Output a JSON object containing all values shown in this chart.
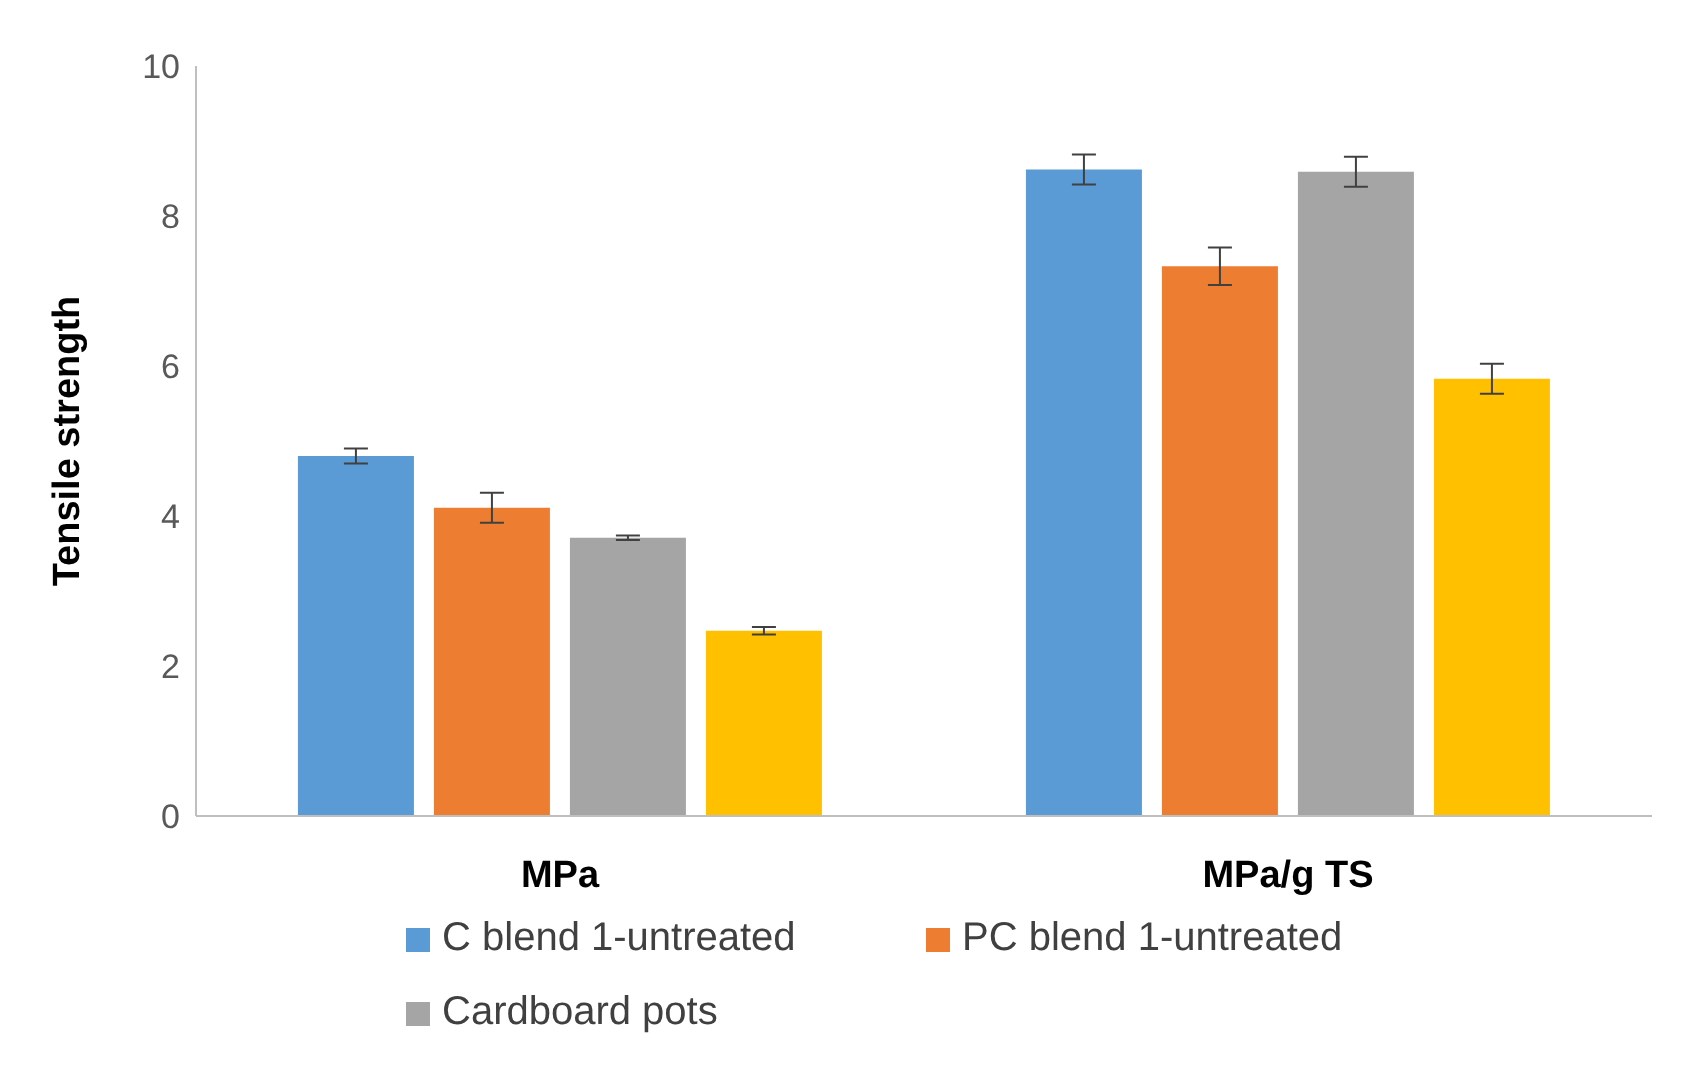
{
  "chart_data": {
    "type": "bar",
    "ylabel": "Tensile strength",
    "categories": [
      "MPa",
      "MPa/g TS"
    ],
    "series": [
      {
        "name": "C blend 1-untreated",
        "color": "#5b9bd5",
        "values": [
          4.8,
          8.62
        ],
        "errors": [
          0.1,
          0.2
        ]
      },
      {
        "name": "PC blend 1-untreated",
        "color": "#ed7d31",
        "values": [
          4.11,
          7.33
        ],
        "errors": [
          0.2,
          0.25
        ]
      },
      {
        "name": "Cardboard pots",
        "color": "#a5a5a5",
        "values": [
          3.71,
          8.59
        ],
        "errors": [
          0.03,
          0.2
        ]
      },
      {
        "color": "#ffc000",
        "values": [
          2.47,
          5.83
        ],
        "errors": [
          0.05,
          0.2
        ]
      }
    ],
    "ylim": [
      0,
      10
    ],
    "yticks": [
      0,
      2,
      4,
      6,
      8,
      10
    ],
    "grid": false,
    "legend": "bottom"
  }
}
